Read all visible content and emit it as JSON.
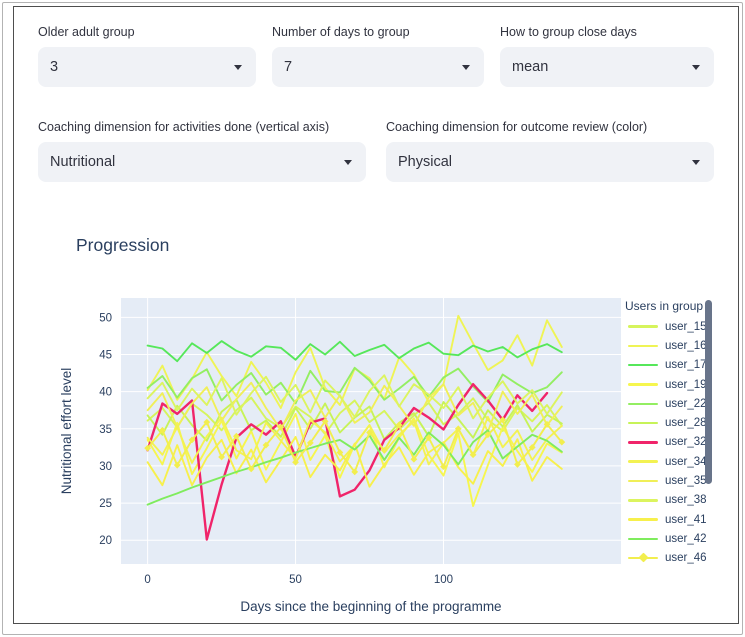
{
  "controls": {
    "row1": [
      {
        "label": "Older adult group",
        "value": "3"
      },
      {
        "label": "Number of days to group",
        "value": "7"
      },
      {
        "label": "How to group close days",
        "value": "mean"
      }
    ],
    "row2": [
      {
        "label": "Coaching dimension for activities done (vertical axis)",
        "value": "Nutritional"
      },
      {
        "label": "Coaching dimension for outcome review (color)",
        "value": "Physical"
      }
    ]
  },
  "chart_title": "Progression",
  "chart_data": {
    "type": "line",
    "title": "Progression",
    "xlabel": "Days since the beginning of the programme",
    "ylabel": "Nutritional effort level",
    "xlim": [
      -9,
      160
    ],
    "ylim": [
      16.8,
      52.6
    ],
    "xticks": [
      0,
      50,
      100
    ],
    "yticks": [
      20,
      25,
      30,
      35,
      40,
      45,
      50
    ],
    "grid": true,
    "plot_bg": "#e5ecf6",
    "grid_color": "#ffffff",
    "text_color": "#2a3f5f",
    "legend_title": "Users in group",
    "legend_position": "right",
    "series": [
      {
        "name": "user_15",
        "color": "#d6f45c",
        "marker": false,
        "x": [
          0,
          5,
          10,
          15,
          20,
          25,
          30,
          35,
          40,
          45,
          50,
          55,
          60,
          65,
          70,
          75,
          80,
          85,
          90,
          95,
          100,
          105,
          110,
          115,
          120,
          125,
          130,
          135,
          140
        ],
        "y": [
          36.1,
          37.8,
          35.2,
          38.4,
          36.9,
          34.8,
          37.5,
          39.2,
          36.4,
          35.1,
          38.0,
          36.6,
          34.3,
          37.1,
          38.8,
          35.9,
          37.4,
          34.9,
          36.8,
          38.5,
          35.6,
          37.0,
          39.1,
          36.2,
          34.7,
          37.8,
          36.0,
          38.2,
          35.4
        ]
      },
      {
        "name": "user_16",
        "color": "#eff455",
        "marker": false,
        "x": [
          0,
          5,
          10,
          15,
          20,
          25,
          30,
          35,
          40,
          45,
          50,
          55,
          60,
          65,
          70,
          75,
          80,
          85,
          90,
          95,
          100,
          105,
          110,
          115,
          120,
          125,
          130,
          135,
          140
        ],
        "y": [
          40.2,
          43.5,
          38.9,
          41.7,
          45.3,
          42.1,
          39.4,
          44.0,
          41.2,
          37.8,
          42.6,
          45.9,
          40.5,
          38.2,
          43.1,
          41.8,
          39.0,
          44.6,
          42.3,
          38.6,
          41.0,
          50.2,
          46.5,
          42.9,
          44.2,
          47.6,
          43.5,
          49.6,
          46.0
        ]
      },
      {
        "name": "user_17",
        "color": "#56e75a",
        "marker": false,
        "x": [
          0,
          5,
          10,
          15,
          20,
          25,
          30,
          35,
          40,
          45,
          50,
          55,
          60,
          65,
          70,
          75,
          80,
          85,
          90,
          95,
          100,
          105,
          110,
          115,
          120,
          125,
          130,
          135,
          140
        ],
        "y": [
          46.2,
          45.8,
          44.1,
          46.5,
          45.2,
          46.8,
          45.5,
          44.7,
          46.1,
          45.9,
          44.3,
          46.4,
          45.0,
          46.7,
          44.8,
          45.6,
          46.3,
          44.5,
          45.8,
          46.6,
          45.1,
          44.9,
          46.2,
          45.4,
          46.0,
          44.6,
          45.7,
          46.4,
          45.3
        ]
      },
      {
        "name": "user_19",
        "color": "#f6f64e",
        "marker": false,
        "x": [
          0,
          5,
          10,
          15,
          20,
          25,
          30,
          35,
          40,
          45,
          50,
          55,
          60,
          65,
          70,
          75,
          80,
          85,
          90,
          95,
          100,
          105,
          110,
          115,
          120,
          125,
          130,
          135,
          140
        ],
        "y": [
          33.5,
          30.2,
          35.8,
          28.9,
          32.4,
          36.1,
          31.0,
          34.7,
          29.5,
          33.2,
          37.0,
          30.8,
          34.1,
          28.4,
          32.9,
          35.5,
          29.8,
          33.8,
          36.4,
          31.5,
          28.7,
          34.4,
          24.6,
          30.1,
          35.2,
          32.0,
          29.2,
          33.0,
          31.8
        ]
      },
      {
        "name": "user_22",
        "color": "#93ee62",
        "marker": false,
        "x": [
          0,
          5,
          10,
          15,
          20,
          25,
          30,
          35,
          40,
          45,
          50,
          55,
          60,
          65,
          70,
          75,
          80,
          85,
          90,
          95,
          100,
          105,
          110,
          115,
          120,
          125,
          130,
          135,
          140
        ],
        "y": [
          40.5,
          42.1,
          39.2,
          41.8,
          43.0,
          38.8,
          40.9,
          42.5,
          39.6,
          41.2,
          38.4,
          42.8,
          40.1,
          39.9,
          43.2,
          41.5,
          38.9,
          40.4,
          42.0,
          39.3,
          41.9,
          43.1,
          40.7,
          38.6,
          42.3,
          41.0,
          39.8,
          40.6,
          42.6
        ]
      },
      {
        "name": "user_28",
        "color": "#c7f358",
        "marker": false,
        "x": [
          0,
          5,
          10,
          15,
          20,
          25,
          30,
          35,
          40,
          45,
          50,
          55,
          60,
          65,
          70,
          75,
          80,
          85,
          90,
          95,
          100,
          105,
          110,
          115,
          120,
          125,
          130,
          135,
          140
        ],
        "y": [
          36.8,
          34.2,
          38.1,
          35.5,
          33.4,
          37.3,
          38.9,
          34.8,
          36.1,
          33.9,
          37.8,
          35.0,
          38.4,
          34.5,
          36.5,
          38.0,
          33.6,
          35.8,
          37.1,
          34.0,
          38.6,
          36.3,
          33.8,
          37.5,
          35.3,
          38.2,
          34.6,
          36.9,
          35.7
        ]
      },
      {
        "name": "user_32",
        "color": "#f0246a",
        "marker": false,
        "x": [
          0,
          5,
          10,
          15,
          20,
          25,
          30,
          35,
          40,
          45,
          50,
          55,
          60,
          65,
          70,
          75,
          80,
          85,
          90,
          95,
          100,
          105,
          110,
          115,
          120,
          125,
          130,
          135
        ],
        "y": [
          32.1,
          38.4,
          37.0,
          38.8,
          20.1,
          27.5,
          33.8,
          35.6,
          34.2,
          36.0,
          31.2,
          35.8,
          36.4,
          25.9,
          26.8,
          29.4,
          33.5,
          35.1,
          37.8,
          36.5,
          34.9,
          38.2,
          41.0,
          38.8,
          36.2,
          39.5,
          37.4,
          39.8
        ]
      },
      {
        "name": "user_34",
        "color": "#f3f252",
        "marker": false,
        "x": [
          0,
          5,
          10,
          15,
          20,
          25,
          30,
          35,
          40,
          45,
          50,
          55,
          60,
          65,
          70,
          75,
          80,
          85,
          90,
          95,
          100,
          105,
          110,
          115,
          120,
          125,
          130,
          135,
          140
        ],
        "y": [
          33.8,
          31.5,
          35.2,
          30.4,
          34.0,
          36.5,
          32.1,
          30.9,
          35.8,
          33.4,
          31.0,
          36.2,
          34.5,
          30.6,
          32.8,
          35.5,
          31.8,
          34.2,
          36.0,
          30.2,
          33.1,
          35.0,
          31.4,
          36.6,
          32.5,
          34.8,
          30.8,
          33.6,
          35.4
        ]
      },
      {
        "name": "user_35",
        "color": "#f0ef58",
        "marker": false,
        "x": [
          0,
          5,
          10,
          15,
          20,
          25,
          30,
          35,
          40,
          45,
          50,
          55,
          60,
          65,
          70,
          75,
          80,
          85,
          90,
          95,
          100,
          105,
          110,
          115,
          120,
          125,
          130,
          135,
          140
        ],
        "y": [
          37.5,
          39.8,
          35.2,
          38.4,
          40.6,
          36.1,
          39.0,
          41.2,
          37.8,
          34.9,
          38.8,
          40.2,
          36.5,
          39.5,
          35.8,
          37.2,
          40.8,
          38.1,
          35.4,
          39.2,
          41.0,
          36.8,
          38.5,
          34.6,
          40.0,
          37.0,
          39.6,
          35.5,
          38.0
        ]
      },
      {
        "name": "user_38",
        "color": "#dcf45f",
        "marker": false,
        "x": [
          0,
          5,
          10,
          15,
          20,
          25,
          30,
          35,
          40,
          45,
          50,
          55,
          60,
          65,
          70,
          75,
          80,
          85,
          90,
          95,
          100,
          105,
          110,
          115,
          120,
          125,
          130,
          135,
          140
        ],
        "y": [
          39.1,
          41.2,
          37.5,
          40.4,
          38.2,
          41.8,
          36.9,
          39.8,
          42.0,
          38.6,
          40.9,
          37.2,
          41.5,
          39.4,
          36.6,
          40.1,
          42.2,
          38.0,
          41.0,
          39.6,
          37.8,
          40.6,
          36.4,
          39.2,
          41.4,
          38.4,
          40.2,
          37.0,
          39.9
        ]
      },
      {
        "name": "user_41",
        "color": "#f7f04c",
        "marker": false,
        "x": [
          0,
          5,
          10,
          15,
          20,
          25,
          30,
          35,
          40,
          45,
          50,
          55,
          60,
          65,
          70,
          75,
          80,
          85,
          90,
          95,
          100,
          105,
          110,
          115,
          120,
          125,
          130,
          135,
          140
        ],
        "y": [
          30.5,
          27.4,
          32.8,
          27.4,
          31.1,
          33.5,
          29.0,
          32.2,
          27.8,
          30.8,
          33.9,
          28.5,
          31.5,
          29.4,
          33.0,
          27.2,
          30.2,
          32.5,
          28.8,
          31.8,
          33.2,
          29.8,
          27.6,
          32.0,
          30.0,
          33.6,
          28.0,
          31.2,
          29.6
        ]
      },
      {
        "name": "user_42",
        "color": "#7fec5d",
        "marker": false,
        "x": [
          0,
          5,
          10,
          15,
          20,
          25,
          30,
          35,
          40,
          45,
          50,
          55,
          60,
          65,
          70,
          75,
          80,
          85,
          90,
          95,
          100,
          105,
          110,
          115,
          120,
          125,
          130,
          135,
          140
        ],
        "y": [
          24.8,
          25.6,
          26.3,
          27.1,
          27.8,
          28.5,
          29.2,
          29.8,
          30.5,
          31.1,
          31.8,
          32.4,
          33.0,
          33.5,
          32.2,
          34.1,
          30.8,
          33.8,
          31.5,
          34.5,
          32.8,
          30.2,
          33.2,
          34.8,
          31.0,
          32.6,
          34.2,
          33.4,
          31.9
        ]
      },
      {
        "name": "user_46",
        "color": "#f2ee4e",
        "marker": true,
        "x": [
          0,
          5,
          10,
          15,
          20,
          25,
          30,
          35,
          40,
          45,
          50,
          55,
          60,
          65,
          70,
          75,
          80,
          85,
          90,
          95,
          100,
          105,
          110,
          115,
          120,
          125,
          130,
          135,
          140
        ],
        "y": [
          32.4,
          34.8,
          30.1,
          33.5,
          35.9,
          31.2,
          34.0,
          29.6,
          32.8,
          35.2,
          30.5,
          33.1,
          36.0,
          31.8,
          29.2,
          34.5,
          32.1,
          35.5,
          30.9,
          33.8,
          29.9,
          35.0,
          31.5,
          34.2,
          36.2,
          30.2,
          32.5,
          35.6,
          33.2
        ]
      }
    ]
  }
}
